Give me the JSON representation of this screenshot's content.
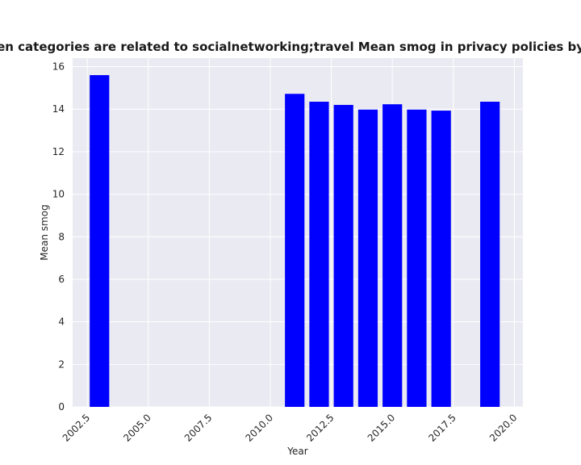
{
  "chart_data": {
    "type": "bar",
    "title": "when categories are related to socialnetworking;travel Mean smog in privacy policies by Year",
    "xlabel": "Year",
    "ylabel": "Mean smog",
    "x": [
      2003,
      2011,
      2012,
      2013,
      2014,
      2015,
      2016,
      2017,
      2019
    ],
    "values": [
      15.6,
      14.72,
      14.35,
      14.2,
      13.98,
      14.23,
      13.98,
      13.93,
      14.35
    ],
    "xlim": [
      2001.9,
      2020.35
    ],
    "ylim": [
      0,
      16.4
    ],
    "xticks": [
      2002.5,
      2005.0,
      2007.5,
      2010.0,
      2012.5,
      2015.0,
      2017.5,
      2020.0
    ],
    "xtick_labels": [
      "2002.5",
      "2005.0",
      "2007.5",
      "2010.0",
      "2012.5",
      "2015.0",
      "2017.5",
      "2020.0"
    ],
    "yticks": [
      0,
      2,
      4,
      6,
      8,
      10,
      12,
      14,
      16
    ],
    "ytick_labels": [
      "0",
      "2",
      "4",
      "6",
      "8",
      "10",
      "12",
      "14",
      "16"
    ],
    "bar_color": "#0000ff",
    "background_color": "#eaeaf2",
    "grid": true
  }
}
